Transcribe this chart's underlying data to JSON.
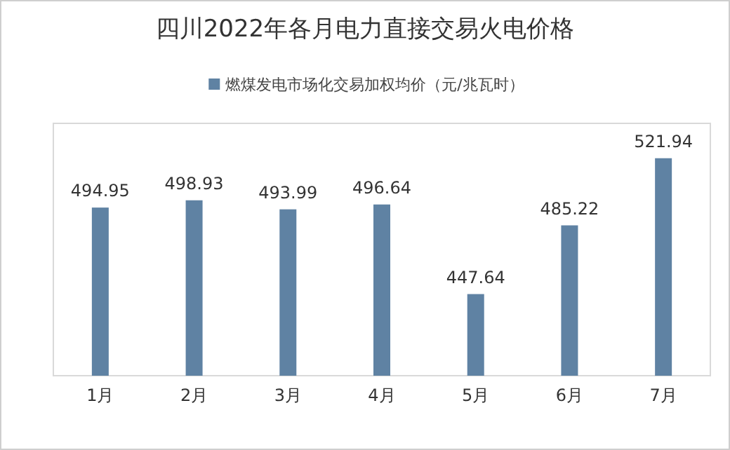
{
  "chart_data": {
    "type": "bar",
    "title": "四川2022年各月电力直接交易火电价格",
    "categories": [
      "1月",
      "2月",
      "3月",
      "4月",
      "5月",
      "6月",
      "7月"
    ],
    "series": [
      {
        "name": "燃煤发电市场化交易加权均价（元/兆瓦时）",
        "color": "#5f82a3",
        "values": [
          494.95,
          498.93,
          493.99,
          496.64,
          447.64,
          485.22,
          521.94
        ]
      }
    ],
    "ylim": [
      403,
      541
    ],
    "data_labels": true,
    "legend": "top"
  }
}
